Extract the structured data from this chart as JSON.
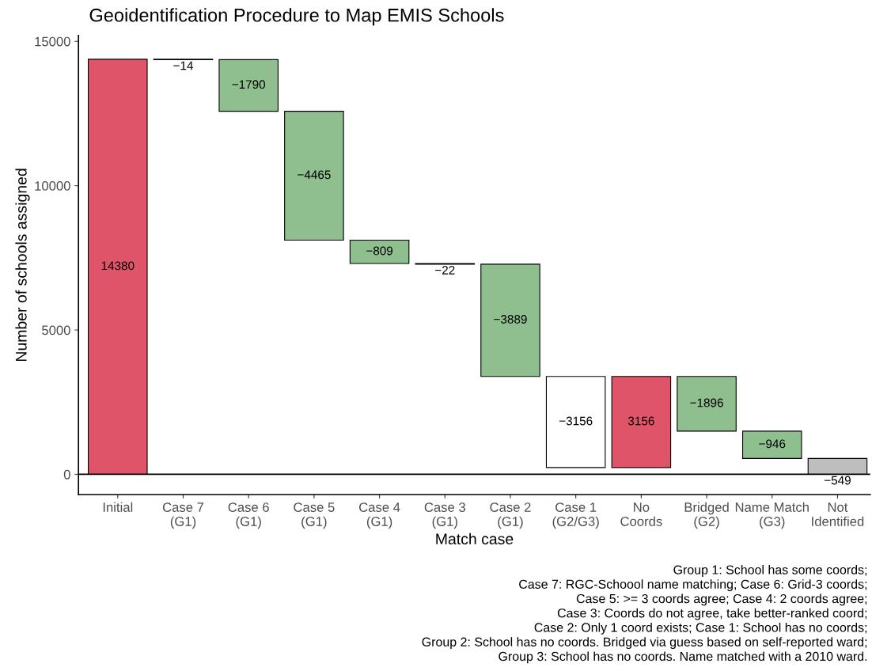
{
  "chart_data": {
    "type": "bar",
    "title": "Geoidentification Procedure to Map EMIS Schools",
    "xlabel": "Match case",
    "ylabel": "Number of schools assigned",
    "categories": [
      "Initial",
      "Case 7\n(G1)",
      "Case 6\n(G1)",
      "Case 5\n(G1)",
      "Case 4\n(G1)",
      "Case 3\n(G1)",
      "Case 2\n(G1)",
      "Case 1\n(G2/G3)",
      "No\nCoords",
      "Bridged\n(G2)",
      "Name Match\n(G3)",
      "Not\nIdentified"
    ],
    "values": [
      14380,
      -14,
      -1790,
      -4465,
      -809,
      -22,
      -3889,
      -3156,
      3156,
      -1896,
      -946,
      -549
    ],
    "base": [
      0,
      14380,
      14366,
      12576,
      8111,
      7302,
      7280,
      3391,
      235,
      3391,
      1495,
      549
    ],
    "colors": [
      "#e0546a",
      "#ffffff",
      "#8fbf8f",
      "#8fbf8f",
      "#8fbf8f",
      "#ffffff",
      "#8fbf8f",
      "#ffffff",
      "#e0546a",
      "#8fbf8f",
      "#8fbf8f",
      "#bebebe"
    ],
    "data_labels": true,
    "ylim": [
      -700,
      15200
    ],
    "yticks": [
      0,
      5000,
      10000,
      15000
    ],
    "ref_lines": [
      {
        "axis": "y",
        "value": 0,
        "color": "#000000"
      }
    ],
    "grid": false,
    "legend": false,
    "annotations": [
      "Group 1: School has some coords;",
      "Case 7: RGC-Schoool name matching; Case 6: Grid-3 coords;",
      "Case 5: >= 3 coords agree; Case 4: 2 coords agree;",
      "Case 3: Coords do not agree, take better-ranked coord;",
      "Case 2: Only 1 coord exists; Case 1: School has no coords;",
      "Group 2: School has no coords. Bridged via guess based on self-reported ward;",
      "Group 3: School has no coords. Name matched with a 2010 ward."
    ]
  }
}
